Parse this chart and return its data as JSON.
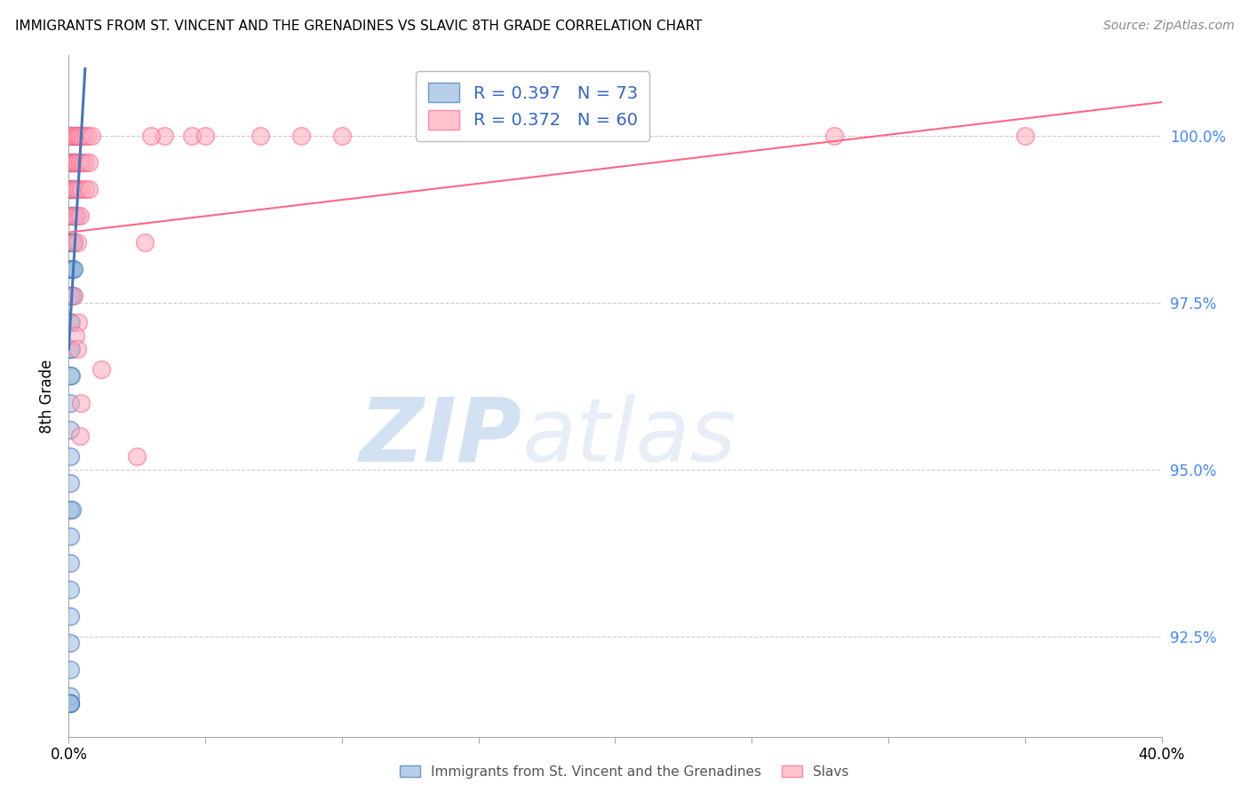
{
  "title": "IMMIGRANTS FROM ST. VINCENT AND THE GRENADINES VS SLAVIC 8TH GRADE CORRELATION CHART",
  "source": "Source: ZipAtlas.com",
  "ylabel": "8th Grade",
  "yticks": [
    92.5,
    95.0,
    97.5,
    100.0
  ],
  "ytick_labels": [
    "92.5%",
    "95.0%",
    "97.5%",
    "100.0%"
  ],
  "xlim": [
    0.0,
    40.0
  ],
  "ylim": [
    91.0,
    101.2
  ],
  "legend_r1": "R = 0.397",
  "legend_n1": "N = 73",
  "legend_r2": "R = 0.372",
  "legend_n2": "N = 60",
  "color_blue": "#99BBDD",
  "color_pink": "#FFAABC",
  "edge_blue": "#4477BB",
  "edge_pink": "#FF6688",
  "watermark_zip": "ZIP",
  "watermark_atlas": "atlas",
  "blue_line_x": [
    0.0,
    0.6
  ],
  "blue_line_y": [
    96.8,
    101.0
  ],
  "pink_line_x": [
    0.0,
    40.0
  ],
  "pink_line_y": [
    98.55,
    100.5
  ],
  "blue_x": [
    0.05,
    0.08,
    0.12,
    0.18,
    0.22,
    0.28,
    0.35,
    0.42,
    0.5,
    0.06,
    0.1,
    0.15,
    0.2,
    0.25,
    0.3,
    0.38,
    0.45,
    0.05,
    0.09,
    0.13,
    0.17,
    0.22,
    0.27,
    0.33,
    0.05,
    0.08,
    0.12,
    0.16,
    0.2,
    0.25,
    0.05,
    0.08,
    0.12,
    0.16,
    0.2,
    0.05,
    0.09,
    0.14,
    0.19,
    0.05,
    0.09,
    0.14,
    0.05,
    0.09,
    0.05,
    0.09,
    0.05,
    0.09,
    0.06,
    0.06,
    0.06,
    0.06,
    0.06,
    0.11,
    0.06,
    0.06,
    0.06,
    0.06,
    0.06,
    0.06,
    0.06,
    0.06,
    0.06,
    0.06
  ],
  "blue_y": [
    100.0,
    100.0,
    100.0,
    100.0,
    100.0,
    100.0,
    100.0,
    100.0,
    100.0,
    99.6,
    99.6,
    99.6,
    99.6,
    99.6,
    99.6,
    99.6,
    99.6,
    99.2,
    99.2,
    99.2,
    99.2,
    99.2,
    99.2,
    99.2,
    98.8,
    98.8,
    98.8,
    98.8,
    98.8,
    98.8,
    98.4,
    98.4,
    98.4,
    98.4,
    98.4,
    98.0,
    98.0,
    98.0,
    98.0,
    97.6,
    97.6,
    97.6,
    97.2,
    97.2,
    96.8,
    96.8,
    96.4,
    96.4,
    96.0,
    95.6,
    95.2,
    94.8,
    94.4,
    94.4,
    94.0,
    93.6,
    93.2,
    92.8,
    92.4,
    92.0,
    91.6,
    91.5,
    91.5,
    91.5
  ],
  "pink_x": [
    0.05,
    0.1,
    0.15,
    0.22,
    0.28,
    0.35,
    0.42,
    0.5,
    0.6,
    0.72,
    0.85,
    0.12,
    0.18,
    0.25,
    0.32,
    0.4,
    0.5,
    0.62,
    0.75,
    0.1,
    0.18,
    0.25,
    0.35,
    0.45,
    0.6,
    0.75,
    0.12,
    0.2,
    0.3,
    0.4,
    0.2,
    0.32,
    2.8,
    3.5,
    0.18,
    0.35,
    4.5,
    0.25,
    0.3,
    1.2,
    0.45,
    0.42,
    7.0,
    8.5,
    3.0,
    28.0,
    35.0,
    2.5,
    5.0,
    10.0
  ],
  "pink_y": [
    100.0,
    100.0,
    100.0,
    100.0,
    100.0,
    100.0,
    100.0,
    100.0,
    100.0,
    100.0,
    100.0,
    99.6,
    99.6,
    99.6,
    99.6,
    99.6,
    99.6,
    99.6,
    99.6,
    99.2,
    99.2,
    99.2,
    99.2,
    99.2,
    99.2,
    99.2,
    98.8,
    98.8,
    98.8,
    98.8,
    98.4,
    98.4,
    98.4,
    100.0,
    97.6,
    97.2,
    100.0,
    97.0,
    96.8,
    96.5,
    96.0,
    95.5,
    100.0,
    100.0,
    100.0,
    100.0,
    100.0,
    95.2,
    100.0,
    100.0
  ]
}
